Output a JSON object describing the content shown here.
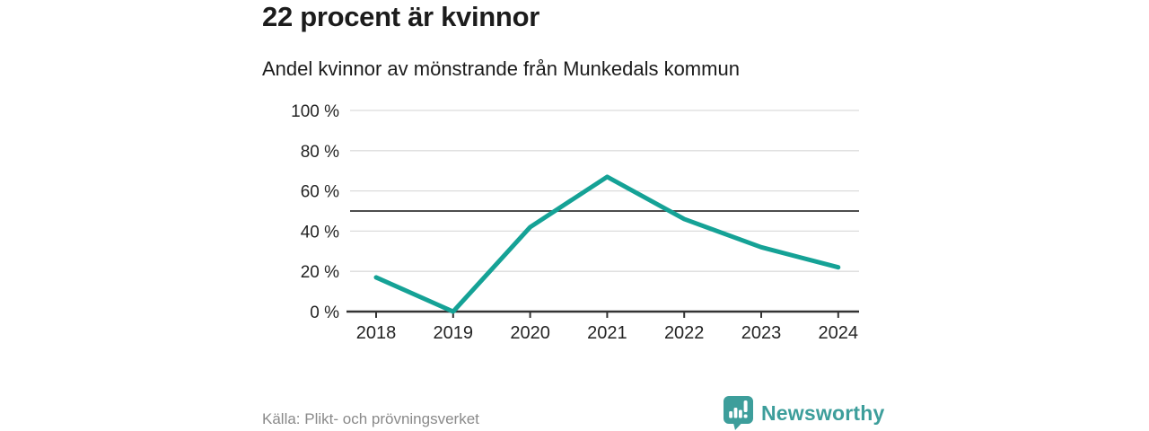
{
  "chart_data": {
    "type": "line",
    "title": "22 procent är kvinnor",
    "subtitle": "Andel kvinnor av mönstrande från Munkedals kommun",
    "source": "Källa: Plikt- och prövningsverket",
    "categories": [
      "2018",
      "2019",
      "2020",
      "2021",
      "2022",
      "2023",
      "2024"
    ],
    "values": [
      17,
      0,
      42,
      67,
      46,
      32,
      22
    ],
    "series_name": "Andel kvinnor av mönstrande",
    "xlabel": "",
    "ylabel": "",
    "ylim": [
      0,
      100
    ],
    "yticks": [
      0,
      20,
      40,
      60,
      80,
      100
    ],
    "ytick_suffix": " %",
    "reference_line": 50,
    "grid": true,
    "legend_position": "none",
    "line_color": "#15a296",
    "grid_color": "#dcdcdc",
    "reference_line_color": "#4d4d4d",
    "axis_color": "#333333"
  },
  "brand": {
    "name": "Newsworthy",
    "color": "#3d9e9b",
    "icon": "speech-bubble-bar-chart"
  }
}
